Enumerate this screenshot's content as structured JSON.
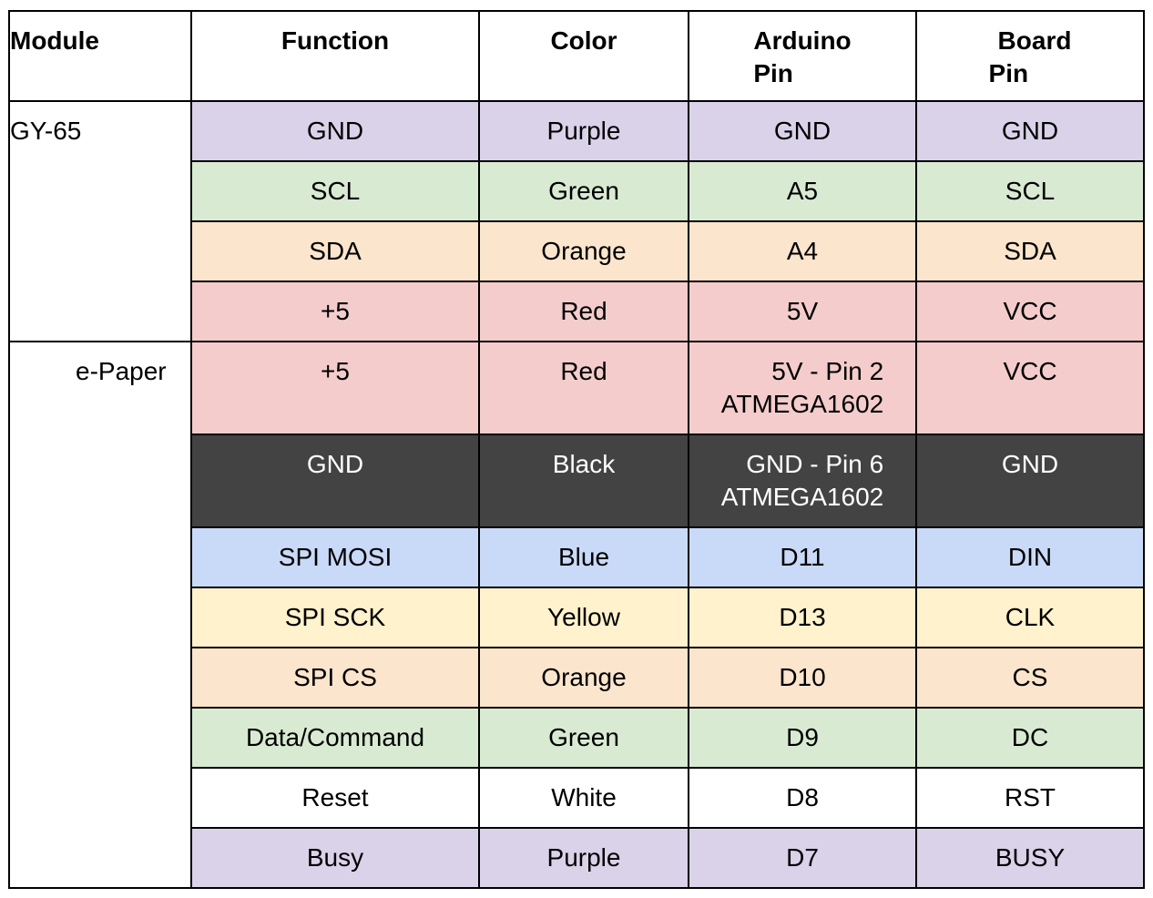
{
  "headers": {
    "module": "Module",
    "function": "Function",
    "color": "Color",
    "arduino_line1": "Arduino",
    "arduino_line2": "Pin",
    "board_line1": "Board",
    "board_line2": "Pin"
  },
  "modules": {
    "gy65": "GY-65",
    "epaper": "e-Paper"
  },
  "colors": {
    "purple": "#d9d2e9",
    "green": "#d9ead3",
    "orange": "#fce5cd",
    "red": "#f4cccc",
    "black": "#434343",
    "blue": "#c9daf8",
    "yellow": "#fff2cc",
    "white": "#ffffff"
  },
  "rows": [
    {
      "function": "GND",
      "color": "Purple",
      "arduino": "GND",
      "board": "GND"
    },
    {
      "function": "SCL",
      "color": "Green",
      "arduino": "A5",
      "board": "SCL"
    },
    {
      "function": "SDA",
      "color": "Orange",
      "arduino": "A4",
      "board": "SDA"
    },
    {
      "function": "+5",
      "color": "Red",
      "arduino": "5V",
      "board": "VCC"
    },
    {
      "function": "+5",
      "color": "Red",
      "arduino_line1": "5V - Pin 2",
      "arduino_line2": "ATMEGA1602",
      "board": "VCC"
    },
    {
      "function": "GND",
      "color": "Black",
      "arduino_line1": "GND - Pin 6",
      "arduino_line2": "ATMEGA1602",
      "board": "GND"
    },
    {
      "function": "SPI MOSI",
      "color": "Blue",
      "arduino": "D11",
      "board": "DIN"
    },
    {
      "function": "SPI SCK",
      "color": "Yellow",
      "arduino": "D13",
      "board": "CLK"
    },
    {
      "function": "SPI CS",
      "color": "Orange",
      "arduino": "D10",
      "board": "CS"
    },
    {
      "function": "Data/Command",
      "color": "Green",
      "arduino": "D9",
      "board": "DC"
    },
    {
      "function": "Reset",
      "color": "White",
      "arduino": "D8",
      "board": "RST"
    },
    {
      "function": "Busy",
      "color": "Purple",
      "arduino": "D7",
      "board": "BUSY"
    }
  ]
}
